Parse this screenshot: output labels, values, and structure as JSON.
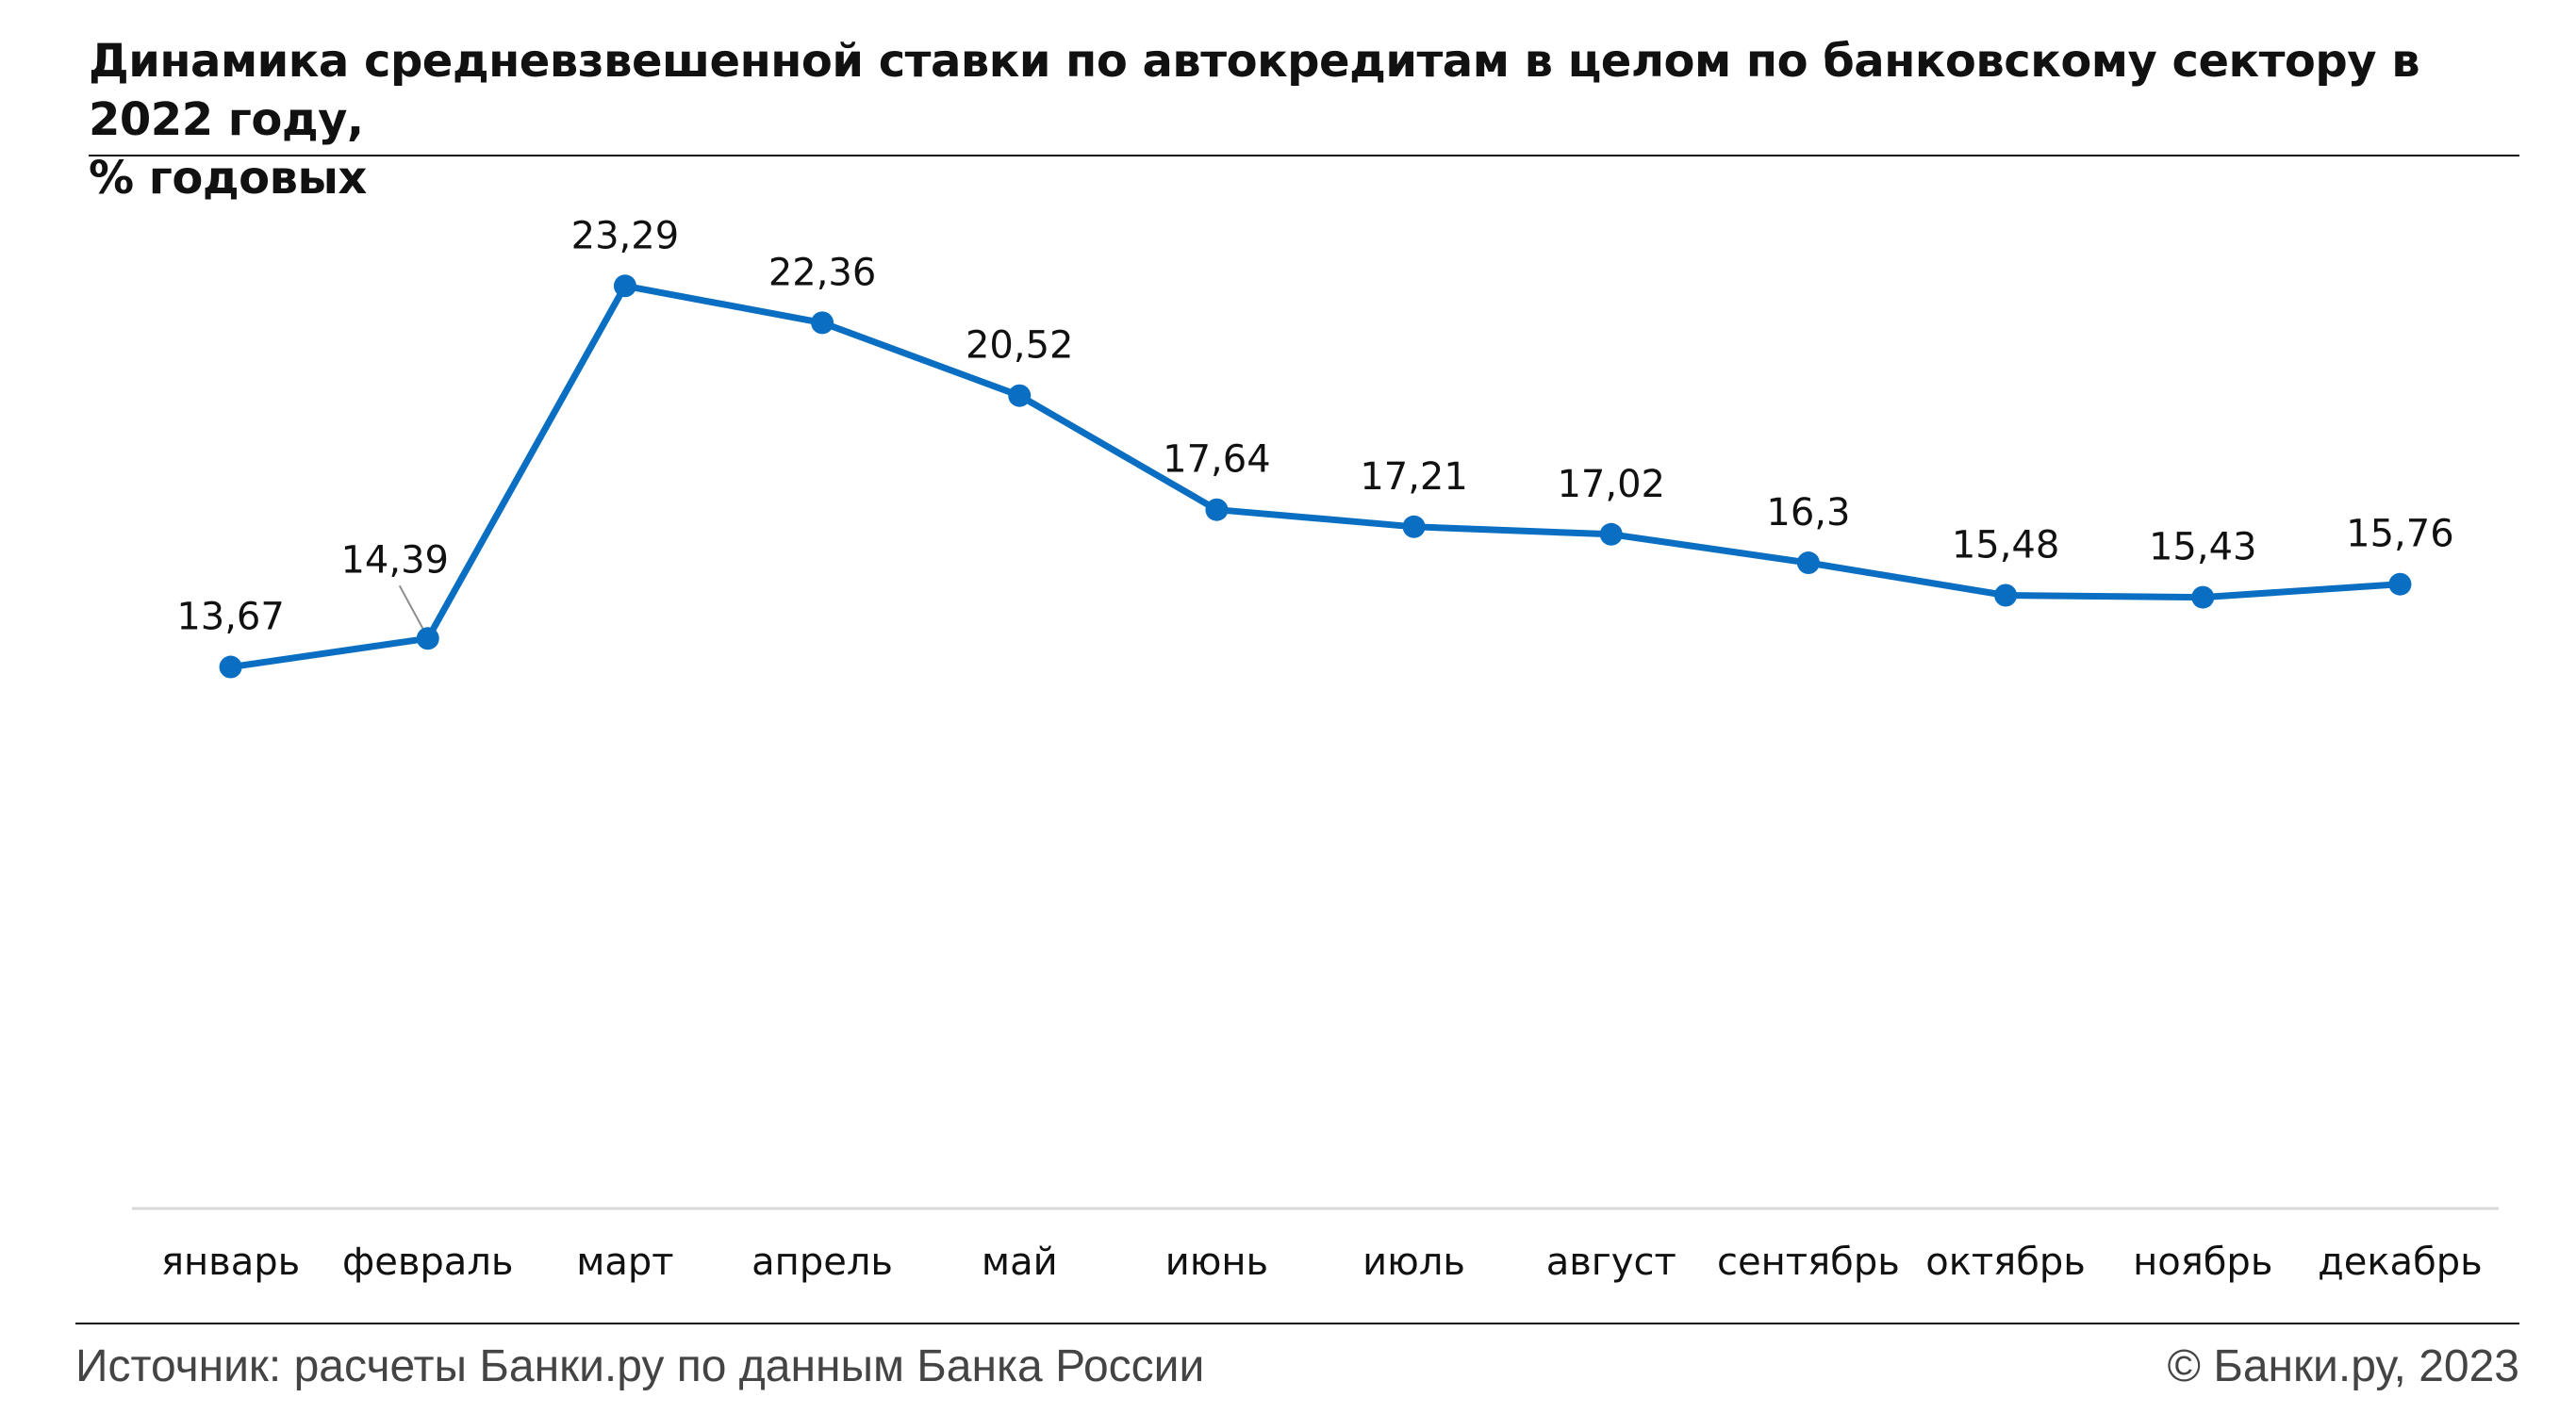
{
  "header": {
    "title_line1": "Динамика средневзвешенной ставки по автокредитам в целом по банковскому сектору в 2022 году,",
    "title_line2": "% годовых"
  },
  "footer": {
    "source": "Источник: расчеты Банки.ру по данным Банка России",
    "copyright": "© Банки.ру, 2023"
  },
  "colors": {
    "series": "#0a6fc2",
    "axis": "#d9d9d9",
    "text": "#111111"
  },
  "chart_data": {
    "type": "line",
    "title": "Динамика средневзвешенной ставки по автокредитам в целом по банковскому сектору в 2022 году, % годовых",
    "xlabel": "",
    "ylabel": "",
    "grid": false,
    "legend": "none",
    "ylim": [
      0,
      26.7
    ],
    "categories": [
      "январь",
      "февраль",
      "март",
      "апрель",
      "май",
      "июнь",
      "июль",
      "август",
      "сентябрь",
      "октябрь",
      "ноябрь",
      "декабрь"
    ],
    "series": [
      {
        "name": "Средневзвешенная ставка, % годовых",
        "values": [
          13.67,
          14.39,
          23.29,
          22.36,
          20.52,
          17.64,
          17.21,
          17.02,
          16.3,
          15.48,
          15.43,
          15.76
        ],
        "labels": [
          "13,67",
          "14,39",
          "23,29",
          "22,36",
          "20,52",
          "17,64",
          "17,21",
          "17,02",
          "16,3",
          "15,48",
          "15,43",
          "15,76"
        ]
      }
    ]
  }
}
